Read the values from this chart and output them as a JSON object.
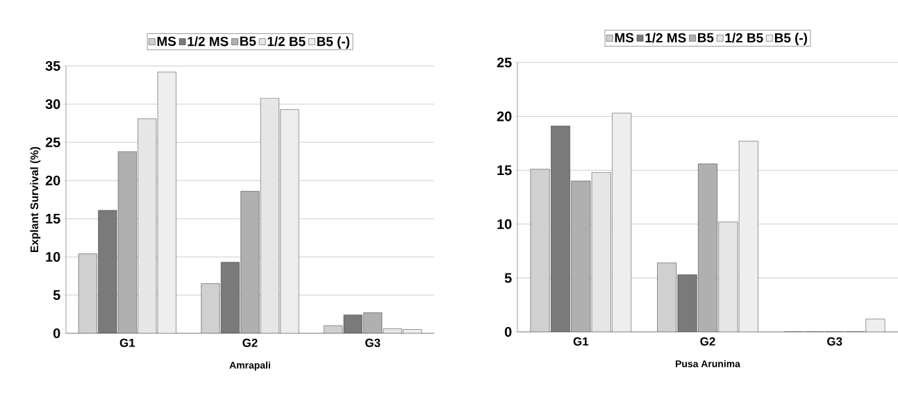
{
  "chart_data": [
    {
      "type": "bar",
      "xlabel": "Amrapali",
      "ylabel": "Explant Survival (%)",
      "categories": [
        "G1",
        "G2",
        "G3"
      ],
      "series": [
        {
          "name": "MS",
          "color": "#d0d0d0",
          "values": [
            10.4,
            6.5,
            1.0
          ]
        },
        {
          "name": "1/2 MS",
          "color": "#7a7a7a",
          "values": [
            16.1,
            9.3,
            2.4
          ]
        },
        {
          "name": "B5",
          "color": "#b0b0b0",
          "values": [
            23.8,
            18.6,
            2.7
          ]
        },
        {
          "name": "1/2 B5",
          "color": "#e6e6e6",
          "values": [
            28.1,
            30.8,
            0.6
          ]
        },
        {
          "name": "B5 (-)",
          "color": "#eeeeee",
          "values": [
            34.2,
            29.3,
            0.5
          ]
        }
      ],
      "ylim": [
        0,
        35
      ],
      "yticks": [
        0,
        5,
        10,
        15,
        20,
        25,
        30,
        35
      ],
      "grid": "y",
      "legend": "top"
    },
    {
      "type": "bar",
      "xlabel": "Pusa Arunima",
      "categories": [
        "G1",
        "G2",
        "G3"
      ],
      "series": [
        {
          "name": "MS",
          "color": "#d0d0d0",
          "values": [
            15.1,
            6.4,
            0
          ]
        },
        {
          "name": "1/2 MS",
          "color": "#7a7a7a",
          "values": [
            19.1,
            5.3,
            0
          ]
        },
        {
          "name": "B5",
          "color": "#b0b0b0",
          "values": [
            14.0,
            15.6,
            0
          ]
        },
        {
          "name": "1/2 B5",
          "color": "#e6e6e6",
          "values": [
            14.8,
            10.2,
            0
          ]
        },
        {
          "name": "B5 (-)",
          "color": "#eeeeee",
          "values": [
            20.3,
            17.7,
            1.2
          ]
        }
      ],
      "ylim": [
        0,
        25
      ],
      "yticks": [
        0,
        5,
        10,
        15,
        20,
        25
      ],
      "grid": "y",
      "legend": "top"
    }
  ]
}
